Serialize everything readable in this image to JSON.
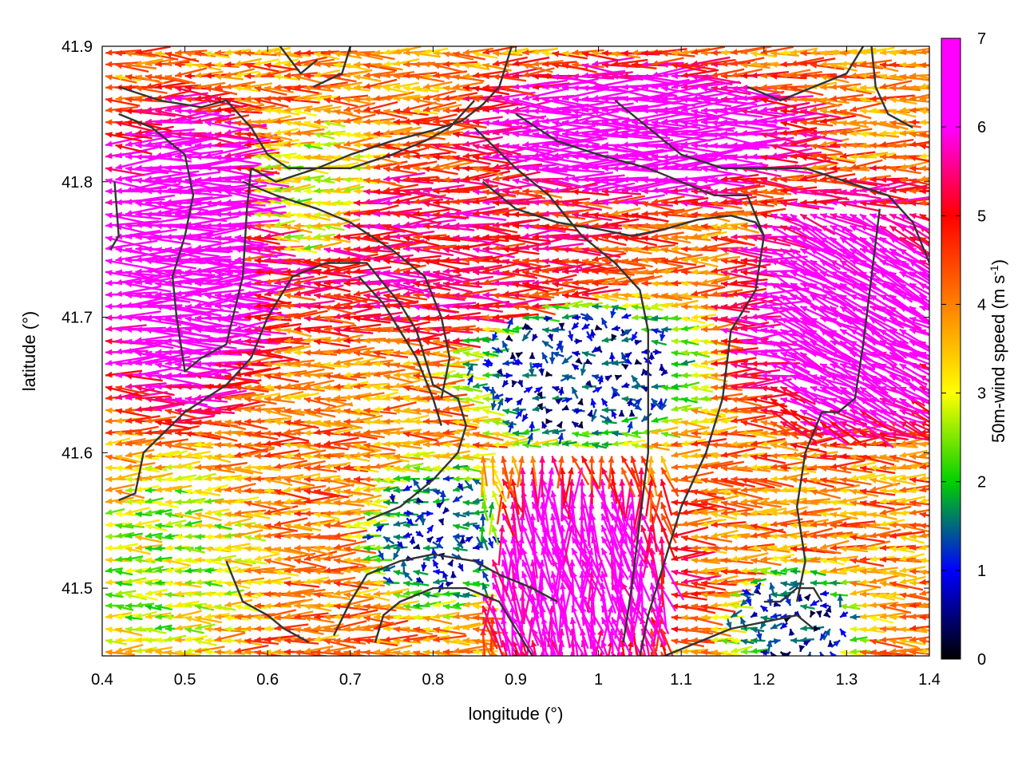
{
  "chart_data": {
    "type": "vector-field",
    "xlabel": "longitude (°)",
    "ylabel": "latitude (°)",
    "colorbar_label_main": "50m-wind speed (m s",
    "colorbar_label_sup": "-1",
    "colorbar_label_close": ")",
    "xlim": [
      0.4,
      1.4
    ],
    "ylim": [
      41.45,
      41.9
    ],
    "xticks": [
      0.4,
      0.5,
      0.6,
      0.7,
      0.8,
      0.9,
      1.0,
      1.1,
      1.2,
      1.3,
      1.4
    ],
    "xtick_labels": [
      "0.4",
      "0.5",
      "0.6",
      "0.7",
      "0.8",
      "0.9",
      "1",
      "1.1",
      "1.2",
      "1.3",
      "1.4"
    ],
    "yticks": [
      41.5,
      41.6,
      41.7,
      41.8,
      41.9
    ],
    "ytick_labels": [
      "41.5",
      "41.6",
      "41.7",
      "41.8",
      "41.9"
    ],
    "colorbar_range": [
      0,
      7
    ],
    "colorbar_ticks": [
      "0",
      "1",
      "2",
      "3",
      "4",
      "5",
      "6",
      "7"
    ],
    "colormap": [
      "#000000",
      "#0000ff",
      "#00d000",
      "#ffff00",
      "#ff8000",
      "#ff0000",
      "#ff00ff"
    ],
    "grid": false,
    "legend": "colorbar-right",
    "dominant_flow": "westward (easterly winds)",
    "speed_regions": [
      {
        "lon": [
          0.4,
          0.56
        ],
        "lat": [
          41.65,
          41.84
        ],
        "speed": 7.0
      },
      {
        "lon": [
          0.86,
          1.2
        ],
        "lat": [
          41.8,
          41.87
        ],
        "speed": 6.8
      },
      {
        "lon": [
          1.18,
          1.4
        ],
        "lat": [
          41.63,
          41.78
        ],
        "speed": 6.6
      },
      {
        "lon": [
          0.88,
          1.06
        ],
        "lat": [
          41.46,
          41.58
        ],
        "speed": 6.4
      },
      {
        "lon": [
          0.56,
          0.98
        ],
        "lat": [
          41.7,
          41.8
        ],
        "speed": 5.2
      },
      {
        "lon": [
          0.86,
          1.08
        ],
        "lat": [
          41.62,
          41.7
        ],
        "speed": 0.9
      },
      {
        "lon": [
          0.74,
          0.86
        ],
        "lat": [
          41.5,
          41.58
        ],
        "speed": 1.2
      },
      {
        "lon": [
          1.18,
          1.28
        ],
        "lat": [
          41.45,
          41.5
        ],
        "speed": 1.0
      },
      {
        "lon": [
          0.6,
          0.7
        ],
        "lat": [
          41.73,
          41.83
        ],
        "speed": 3.0
      },
      {
        "lon": [
          0.4,
          0.54
        ],
        "lat": [
          41.46,
          41.58
        ],
        "speed": 2.8
      }
    ],
    "contours": [
      [
        [
          0.42,
          41.87
        ],
        [
          0.47,
          41.86
        ],
        [
          0.52,
          41.855
        ],
        [
          0.55,
          41.86
        ],
        [
          0.58,
          41.84
        ],
        [
          0.6,
          41.82
        ],
        [
          0.625,
          41.81
        ],
        [
          0.66,
          41.81
        ],
        [
          0.7,
          41.82
        ],
        [
          0.75,
          41.83
        ],
        [
          0.8,
          41.838
        ],
        [
          0.835,
          41.845
        ],
        [
          0.86,
          41.857
        ],
        [
          0.88,
          41.87
        ],
        [
          0.895,
          41.9
        ]
      ],
      [
        [
          0.42,
          41.85
        ],
        [
          0.46,
          41.84
        ],
        [
          0.5,
          41.82
        ],
        [
          0.51,
          41.79
        ],
        [
          0.5,
          41.76
        ],
        [
          0.485,
          41.73
        ],
        [
          0.49,
          41.7
        ],
        [
          0.5,
          41.66
        ],
        [
          0.52,
          41.67
        ],
        [
          0.55,
          41.68
        ],
        [
          0.57,
          41.73
        ],
        [
          0.575,
          41.78
        ],
        [
          0.58,
          41.81
        ]
      ],
      [
        [
          0.41,
          41.75
        ],
        [
          0.42,
          41.76
        ],
        [
          0.415,
          41.8
        ]
      ],
      [
        [
          0.58,
          41.81
        ],
        [
          0.61,
          41.8
        ],
        [
          0.66,
          41.81
        ],
        [
          0.7,
          41.81
        ],
        [
          0.75,
          41.82
        ],
        [
          0.79,
          41.83
        ],
        [
          0.82,
          41.84
        ],
        [
          0.85,
          41.86
        ]
      ],
      [
        [
          0.615,
          41.9
        ],
        [
          0.64,
          41.88
        ],
        [
          0.66,
          41.89
        ]
      ],
      [
        [
          0.7,
          41.9
        ],
        [
          0.69,
          41.88
        ],
        [
          0.655,
          41.87
        ]
      ],
      [
        [
          0.42,
          41.565
        ],
        [
          0.44,
          41.57
        ],
        [
          0.45,
          41.6
        ],
        [
          0.5,
          41.63
        ],
        [
          0.55,
          41.65
        ],
        [
          0.58,
          41.67
        ],
        [
          0.6,
          41.7
        ],
        [
          0.63,
          41.73
        ],
        [
          0.67,
          41.74
        ],
        [
          0.72,
          41.74
        ],
        [
          0.76,
          41.71
        ],
        [
          0.78,
          41.69
        ],
        [
          0.8,
          41.65
        ],
        [
          0.83,
          41.64
        ],
        [
          0.84,
          41.62
        ],
        [
          0.83,
          41.6
        ],
        [
          0.8,
          41.58
        ],
        [
          0.76,
          41.56
        ],
        [
          0.72,
          41.55
        ]
      ],
      [
        [
          0.71,
          41.73
        ],
        [
          0.74,
          41.71
        ],
        [
          0.78,
          41.67
        ],
        [
          0.8,
          41.64
        ],
        [
          0.81,
          41.62
        ]
      ],
      [
        [
          0.57,
          41.8
        ],
        [
          0.61,
          41.79
        ],
        [
          0.66,
          41.78
        ],
        [
          0.7,
          41.77
        ],
        [
          0.75,
          41.75
        ],
        [
          0.79,
          41.73
        ],
        [
          0.81,
          41.7
        ],
        [
          0.82,
          41.67
        ],
        [
          0.81,
          41.64
        ]
      ],
      [
        [
          0.85,
          41.84
        ],
        [
          0.9,
          41.81
        ],
        [
          0.94,
          41.79
        ],
        [
          0.98,
          41.76
        ],
        [
          1.02,
          41.74
        ],
        [
          1.05,
          41.72
        ],
        [
          1.06,
          41.69
        ],
        [
          1.06,
          41.64
        ],
        [
          1.06,
          41.6
        ],
        [
          1.05,
          41.55
        ],
        [
          1.04,
          41.5
        ],
        [
          1.03,
          41.46
        ]
      ],
      [
        [
          0.86,
          41.8
        ],
        [
          0.9,
          41.78
        ],
        [
          0.95,
          41.77
        ],
        [
          1.0,
          41.765
        ],
        [
          1.04,
          41.76
        ],
        [
          1.08,
          41.765
        ],
        [
          1.12,
          41.772
        ],
        [
          1.16,
          41.775
        ],
        [
          1.19,
          41.77
        ],
        [
          1.2,
          41.76
        ]
      ],
      [
        [
          0.9,
          41.85
        ],
        [
          0.95,
          41.83
        ],
        [
          1.0,
          41.82
        ],
        [
          1.06,
          41.81
        ],
        [
          1.1,
          41.8
        ],
        [
          1.14,
          41.79
        ],
        [
          1.18,
          41.79
        ],
        [
          1.2,
          41.76
        ],
        [
          1.19,
          41.72
        ],
        [
          1.16,
          41.69
        ],
        [
          1.15,
          41.64
        ],
        [
          1.13,
          41.6
        ],
        [
          1.1,
          41.56
        ],
        [
          1.08,
          41.52
        ],
        [
          1.06,
          41.48
        ],
        [
          1.05,
          41.45
        ]
      ],
      [
        [
          1.02,
          41.86
        ],
        [
          1.06,
          41.84
        ],
        [
          1.1,
          41.82
        ],
        [
          1.15,
          41.81
        ],
        [
          1.2,
          41.81
        ],
        [
          1.25,
          41.81
        ],
        [
          1.3,
          41.8
        ],
        [
          1.35,
          41.79
        ],
        [
          1.38,
          41.77
        ],
        [
          1.4,
          41.74
        ]
      ],
      [
        [
          1.34,
          41.78
        ],
        [
          1.33,
          41.73
        ],
        [
          1.32,
          41.68
        ],
        [
          1.31,
          41.64
        ],
        [
          1.29,
          41.63
        ],
        [
          1.27,
          41.63
        ],
        [
          1.25,
          41.6
        ],
        [
          1.24,
          41.56
        ],
        [
          1.25,
          41.52
        ],
        [
          1.24,
          41.49
        ]
      ],
      [
        [
          1.2,
          41.49
        ],
        [
          1.22,
          41.49
        ],
        [
          1.24,
          41.5
        ],
        [
          1.26,
          41.5
        ],
        [
          1.27,
          41.49
        ]
      ],
      [
        [
          1.08,
          41.45
        ],
        [
          1.12,
          41.46
        ],
        [
          1.16,
          41.47
        ],
        [
          1.2,
          41.475
        ],
        [
          1.24,
          41.48
        ],
        [
          1.26,
          41.47
        ]
      ],
      [
        [
          0.68,
          41.465
        ],
        [
          0.7,
          41.49
        ],
        [
          0.72,
          41.51
        ],
        [
          0.76,
          41.52
        ],
        [
          0.8,
          41.525
        ],
        [
          0.85,
          41.52
        ],
        [
          0.88,
          41.51
        ],
        [
          0.92,
          41.5
        ],
        [
          0.95,
          41.49
        ]
      ],
      [
        [
          0.73,
          41.46
        ],
        [
          0.74,
          41.48
        ],
        [
          0.76,
          41.49
        ],
        [
          0.8,
          41.5
        ],
        [
          0.84,
          41.5
        ],
        [
          0.88,
          41.49
        ],
        [
          0.9,
          41.47
        ],
        [
          0.92,
          41.45
        ]
      ],
      [
        [
          0.55,
          41.52
        ],
        [
          0.57,
          41.49
        ],
        [
          0.6,
          41.48
        ],
        [
          0.62,
          41.47
        ],
        [
          0.65,
          41.46
        ]
      ],
      [
        [
          1.18,
          41.87
        ],
        [
          1.22,
          41.86
        ],
        [
          1.26,
          41.87
        ],
        [
          1.3,
          41.88
        ],
        [
          1.32,
          41.9
        ]
      ],
      [
        [
          1.33,
          41.9
        ],
        [
          1.335,
          41.87
        ],
        [
          1.35,
          41.85
        ],
        [
          1.38,
          41.84
        ]
      ]
    ]
  }
}
